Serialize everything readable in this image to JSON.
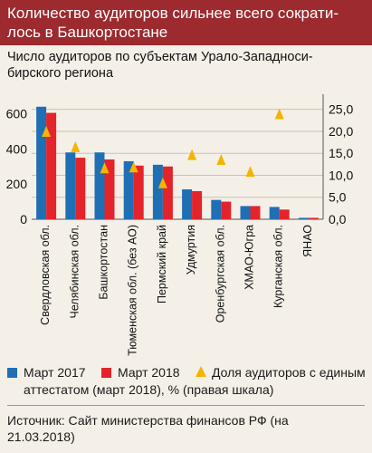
{
  "header": {
    "title": "Количество аудиторов сильнее всего сократи-\nлось в Башкортостане"
  },
  "subtitle": "Число аудиторов по субъектам Урало-Западноси-\nбирского региона",
  "legend": {
    "march2017": "Март 2017",
    "march2018": "Март 2018",
    "share_line1": "Доля аудиторов с единым",
    "share_line2": "аттестатом (март 2018), % (правая шкала)"
  },
  "source": "Источник: Сайт министерства финансов РФ (на\n21.03.2018)",
  "colors": {
    "march2017": "#1f6fb5",
    "march2018": "#e3242b",
    "share": "#f5b400",
    "header_bg": "#9c2a2e"
  },
  "chart_data": {
    "type": "bar",
    "categories": [
      "Свердловская обл.",
      "Челябинская обл.",
      "Башкортостан",
      "Тюменская обл. (без АО)",
      "Пермский край",
      "Удмуртия",
      "Оренбургская обл.",
      "ХМАО-Югра",
      "Курганская обл.",
      "ЯНАО"
    ],
    "series": [
      {
        "name": "Март 2017",
        "axis": "left",
        "values": [
          640,
          380,
          380,
          330,
          310,
          170,
          110,
          75,
          70,
          8
        ]
      },
      {
        "name": "Март 2018",
        "axis": "left",
        "values": [
          605,
          350,
          340,
          305,
          300,
          160,
          100,
          75,
          55,
          8
        ]
      },
      {
        "name": "Доля аудиторов с единым аттестатом (март 2018), %",
        "axis": "right",
        "type": "scatter",
        "values": [
          20.0,
          16.5,
          11.7,
          11.9,
          8.3,
          14.7,
          13.6,
          10.9,
          24.0,
          0
        ]
      }
    ],
    "left_axis": {
      "ticks": [
        "0",
        "200",
        "400",
        "600"
      ],
      "ylim": [
        0,
        680
      ]
    },
    "right_axis": {
      "ticks": [
        "0,0",
        "5,0",
        "10,0",
        "15,0",
        "20,0",
        "25,0"
      ],
      "ylim": [
        0,
        27.2
      ]
    }
  }
}
